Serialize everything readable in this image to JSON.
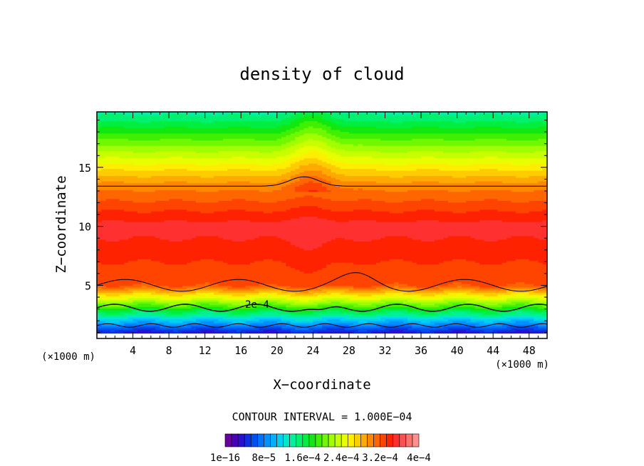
{
  "chart_data": {
    "type": "heatmap",
    "title": "density of cloud",
    "xlabel": "X−coordinate",
    "ylabel": "Z−coordinate",
    "x_unit_left": "(×1000 m)",
    "x_unit_right": "(×1000 m)",
    "xlim": [
      0,
      50
    ],
    "ylim": [
      0.5,
      19.7
    ],
    "x_ticks": [
      4,
      8,
      12,
      16,
      20,
      24,
      28,
      32,
      36,
      40,
      44,
      48
    ],
    "y_ticks": [
      5,
      10,
      15
    ],
    "contour_interval_text": "CONTOUR INTERVAL = 1.000E−04",
    "contour_label": "2e−4",
    "contour_label_pos": [
      17.8,
      3.4
    ],
    "colorbar": {
      "labels": [
        "1e−16",
        "8e−5",
        "1.6e−4",
        "2.4e−4",
        "3.2e−4",
        "4e−4"
      ],
      "colors": [
        "#6a00a0",
        "#4a00b8",
        "#2a10d0",
        "#1030e0",
        "#0050f0",
        "#0070ff",
        "#0090ff",
        "#00b0ff",
        "#00d0f0",
        "#00e8c8",
        "#00f0a0",
        "#00f070",
        "#00ee40",
        "#10e810",
        "#40f000",
        "#70f800",
        "#a0ff00",
        "#c8ff00",
        "#e8ff00",
        "#ffee00",
        "#ffcc00",
        "#ffaa00",
        "#ff8800",
        "#ff6600",
        "#ff4400",
        "#ff2200",
        "#ff3030",
        "#ff5050",
        "#ff7070",
        "#ff9090"
      ]
    }
  }
}
